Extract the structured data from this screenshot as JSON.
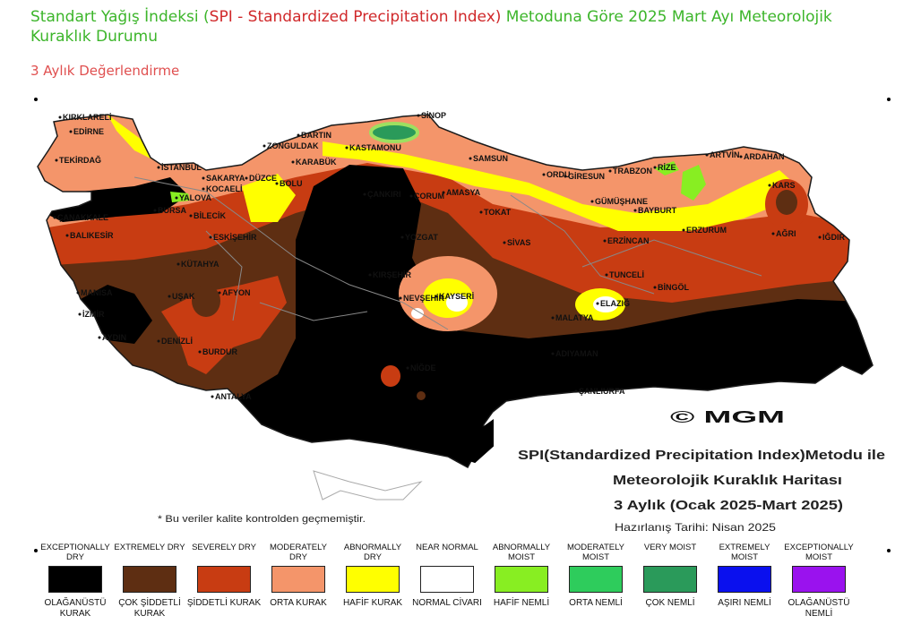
{
  "header": {
    "title_part1": "Standart Yağış İndeksi (",
    "title_part2": "SPI - Standardized Precipitation Index)",
    "title_part3": " Metoduna Göre 2025 Mart Ayı Meteorolojik Kuraklık Durumu",
    "subtitle": "3 Aylık Değerlendirme"
  },
  "map": {
    "copyright": "© MGM",
    "caption_line1": "SPI(Standardized Precipitation Index)Metodu ile",
    "caption_line2": "Meteorolojik Kuraklık Haritası",
    "caption_line3": "3 Aylık (Ocak 2025-Mart 2025)",
    "caption_date": "Hazırlanış Tarihi: Nisan 2025",
    "quality_note": "* Bu veriler kalite kontrolden geçmemiştir.",
    "cities": [
      "KIRKLARELİ",
      "EDİRNE",
      "TEKİRDAĞ",
      "İSTANBUL",
      "ÇANAKKALE",
      "BALIKESİR",
      "BURSA",
      "YALOVA",
      "KOCAELİ",
      "SAKARYA",
      "BİLECİK",
      "ESKİŞEHİR",
      "KÜTAHYA",
      "MANİSA",
      "İZMİR",
      "AYDIN",
      "DENİZLİ",
      "UŞAK",
      "AFYON",
      "BURDUR",
      "ANTALYA",
      "DÜZCE",
      "BOLU",
      "ZONGULDAK",
      "BARTIN",
      "KARABÜK",
      "KASTAMONU",
      "SİNOP",
      "SAMSUN",
      "ÇORUM",
      "ÇANKIRI",
      "AMASYA",
      "TOKAT",
      "YOZGAT",
      "KIRŞEHİR",
      "NEVŞEHİR",
      "KAYSERİ",
      "SİVAS",
      "NİĞDE",
      "ORDU",
      "GİRESUN",
      "TRABZON",
      "RİZE",
      "ARTVİN",
      "ARDAHAN",
      "KARS",
      "GÜMÜŞHANE",
      "BAYBURT",
      "ERZİNCAN",
      "ERZURUM",
      "AĞRI",
      "IĞDIR",
      "TUNCELİ",
      "BİNGÖL",
      "ELAZIĞ",
      "MALATYA",
      "ADIYAMAN",
      "ŞANLIURFA"
    ]
  },
  "legend": [
    {
      "en": "EXCEPTIONALLY DRY",
      "tr": "OLAĞANÜSTÜ KURAK",
      "color": "#000000"
    },
    {
      "en": "EXTREMELY DRY",
      "tr": "ÇOK ŞİDDETLİ KURAK",
      "color": "#5e2e12"
    },
    {
      "en": "SEVERELY DRY",
      "tr": "ŞİDDETLİ KURAK",
      "color": "#c83c12"
    },
    {
      "en": "MODERATELY DRY",
      "tr": "ORTA KURAK",
      "color": "#f4956a"
    },
    {
      "en": "ABNORMALLY DRY",
      "tr": "HAFİF KURAK",
      "color": "#ffff00"
    },
    {
      "en": "NEAR NORMAL",
      "tr": "NORMAL CİVARI",
      "color": "#ffffff"
    },
    {
      "en": "ABNORMALLY MOIST",
      "tr": "HAFİF NEMLİ",
      "color": "#88ee22"
    },
    {
      "en": "MODERATELY MOIST",
      "tr": "ORTA NEMLİ",
      "color": "#2ecc5c"
    },
    {
      "en": "VERY MOIST",
      "tr": "ÇOK NEMLİ",
      "color": "#2a9a5a"
    },
    {
      "en": "EXTREMELY MOIST",
      "tr": "AŞIRI NEMLİ",
      "color": "#0a10ee"
    },
    {
      "en": "EXCEPTIONALLY MOIST",
      "tr": "OLAĞANÜSTÜ NEMLİ",
      "color": "#9a12ee"
    }
  ]
}
